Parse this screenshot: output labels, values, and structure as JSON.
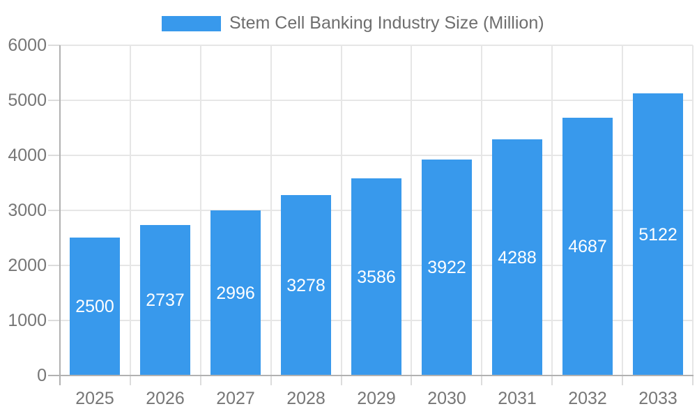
{
  "chart_data": {
    "type": "bar",
    "title": "Stem Cell Banking Industry Size (Million)",
    "categories": [
      "2025",
      "2026",
      "2027",
      "2028",
      "2029",
      "2030",
      "2031",
      "2032",
      "2033"
    ],
    "values": [
      2500,
      2737,
      2996,
      3278,
      3586,
      3922,
      4288,
      4687,
      5122
    ],
    "series": [
      {
        "name": "Stem Cell Banking Industry Size (Million)",
        "values": [
          2500,
          2737,
          2996,
          3278,
          3586,
          3922,
          4288,
          4687,
          5122
        ]
      }
    ],
    "xlabel": "",
    "ylabel": "",
    "ylim": [
      0,
      6000
    ],
    "yticks": [
      0,
      1000,
      2000,
      3000,
      4000,
      5000,
      6000
    ],
    "grid": true,
    "bar_value_labels": "inside-center",
    "legend_position": "top-center",
    "colors": {
      "bar": "#3899EC",
      "bar_label": "#FFFFFF",
      "axis_text": "#767676",
      "legend_text": "#6E6E6E",
      "gridline": "#E6E6E6",
      "tick": "#DCDCDC",
      "axis_line": "#B1B1B1",
      "background": "#FFFFFF"
    }
  }
}
